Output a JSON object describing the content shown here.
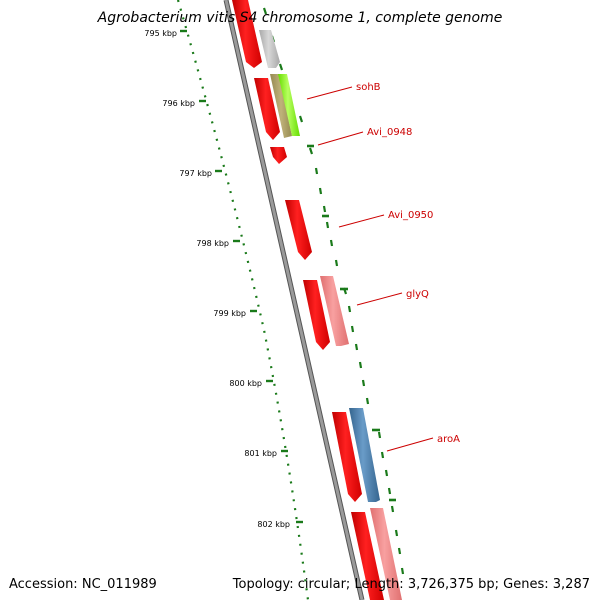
{
  "map": {
    "title": "Agrobacterium vitis S4 chromosome 1, complete genome",
    "accession_label": "Accession:",
    "accession": "NC_011989",
    "topology_label": "Topology:",
    "topology": "circular",
    "length_label": "Length:",
    "length": "3,726,375 bp",
    "genes_label": "Genes:",
    "genes": "3,287"
  },
  "scale": {
    "unit": "kbp",
    "ticks": [
      "795 kbp",
      "796 kbp",
      "797 kbp",
      "798 kbp",
      "799 kbp",
      "800 kbp",
      "801 kbp",
      "802 kbp"
    ]
  },
  "features": [
    {
      "label": "sohB",
      "strand": "forward-ring-2",
      "color": "#80ff00"
    },
    {
      "label": "Avi_0948",
      "strand": "forward-ring-1",
      "color": "#ff0000"
    },
    {
      "label": "Avi_0950",
      "strand": "forward-ring-1",
      "color": "#ff0000"
    },
    {
      "label": "glyQ",
      "strand": "forward-ring-2",
      "color": "#f08080"
    },
    {
      "label": "aroA",
      "strand": "forward-ring-2",
      "color": "#4682b4"
    }
  ],
  "colors": {
    "cds": "#ff0000",
    "cds_light": "#f08080",
    "gray_feature": "#b8b8b8",
    "olive_feature": "#a89a60",
    "lime_feature": "#80ff00",
    "steel_feature": "#4682b4",
    "backbone": "#888888",
    "tick_marks": "#1a7a1a",
    "label_text": "#cc0000",
    "leader_line": "#cc0000"
  }
}
